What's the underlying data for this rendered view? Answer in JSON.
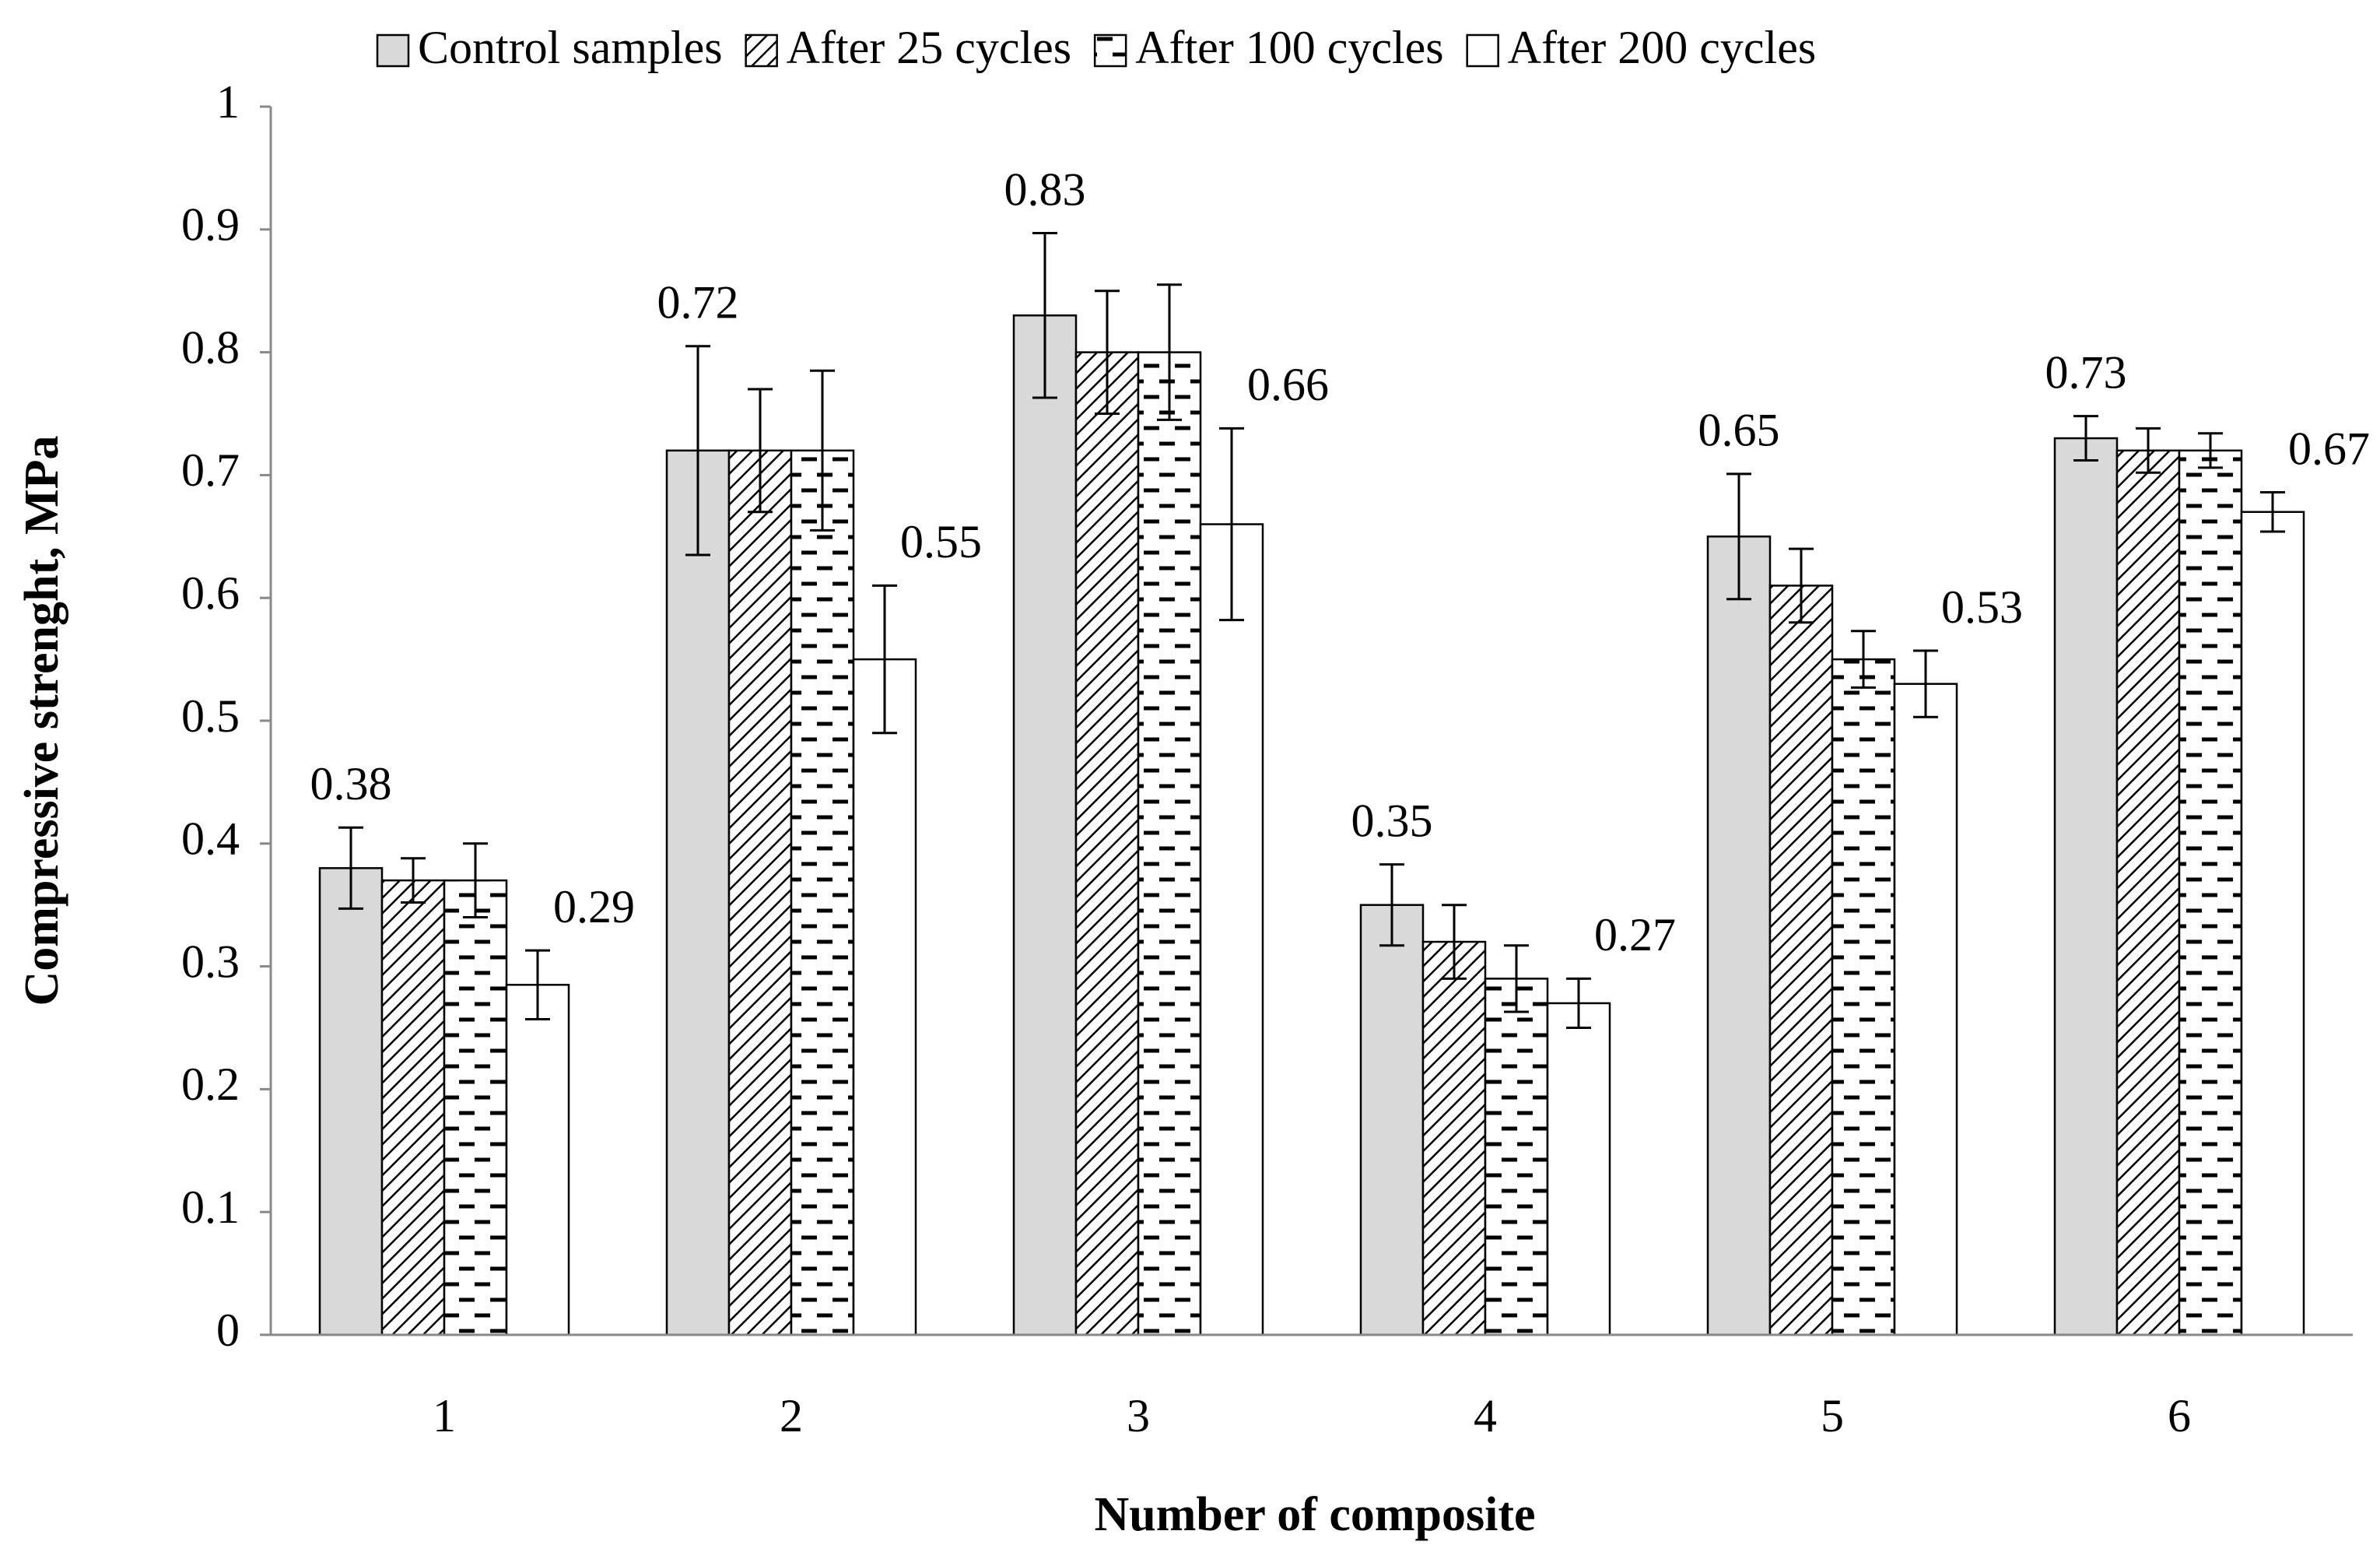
{
  "chart_data": {
    "type": "bar",
    "x_label": "Number of composite",
    "y_label": "Compressive strenght, MPa",
    "categories": [
      "1",
      "2",
      "3",
      "4",
      "5",
      "6"
    ],
    "series": [
      {
        "name": "Control samples",
        "color": "#d9d9d9",
        "pattern": "solid",
        "values": [
          0.38,
          0.72,
          0.83,
          0.35,
          0.65,
          0.73
        ],
        "errors": [
          0.033,
          0.085,
          0.067,
          0.033,
          0.051,
          0.018
        ],
        "value_labels": [
          "0.38",
          "0.72",
          "0.83",
          "0.35",
          "0.65",
          "0.73"
        ]
      },
      {
        "name": "After 25 cycles",
        "color": "#ffffff",
        "pattern": "diagonal",
        "values": [
          0.37,
          0.72,
          0.8,
          0.32,
          0.61,
          0.72
        ],
        "errors": [
          0.018,
          0.05,
          0.05,
          0.03,
          0.03,
          0.018
        ]
      },
      {
        "name": "After 100 cycles",
        "color": "#ffffff",
        "pattern": "dashes",
        "values": [
          0.37,
          0.72,
          0.8,
          0.29,
          0.55,
          0.72
        ],
        "errors": [
          0.03,
          0.065,
          0.055,
          0.027,
          0.023,
          0.014
        ]
      },
      {
        "name": "After 200 cycles",
        "color": "#ffffff",
        "pattern": "solid",
        "values": [
          0.285,
          0.55,
          0.66,
          0.27,
          0.53,
          0.67
        ],
        "errors": [
          0.028,
          0.06,
          0.078,
          0.02,
          0.027,
          0.016
        ],
        "value_labels": [
          "0.29",
          "0.55",
          "0.66",
          "0.27",
          "0.53",
          "0.67"
        ]
      }
    ],
    "ylim": [
      0,
      1
    ],
    "yticks": [
      0,
      0.1,
      0.2,
      0.3,
      0.4,
      0.5,
      0.6,
      0.7,
      0.8,
      0.9,
      1
    ],
    "grid": false,
    "legend": "top"
  }
}
